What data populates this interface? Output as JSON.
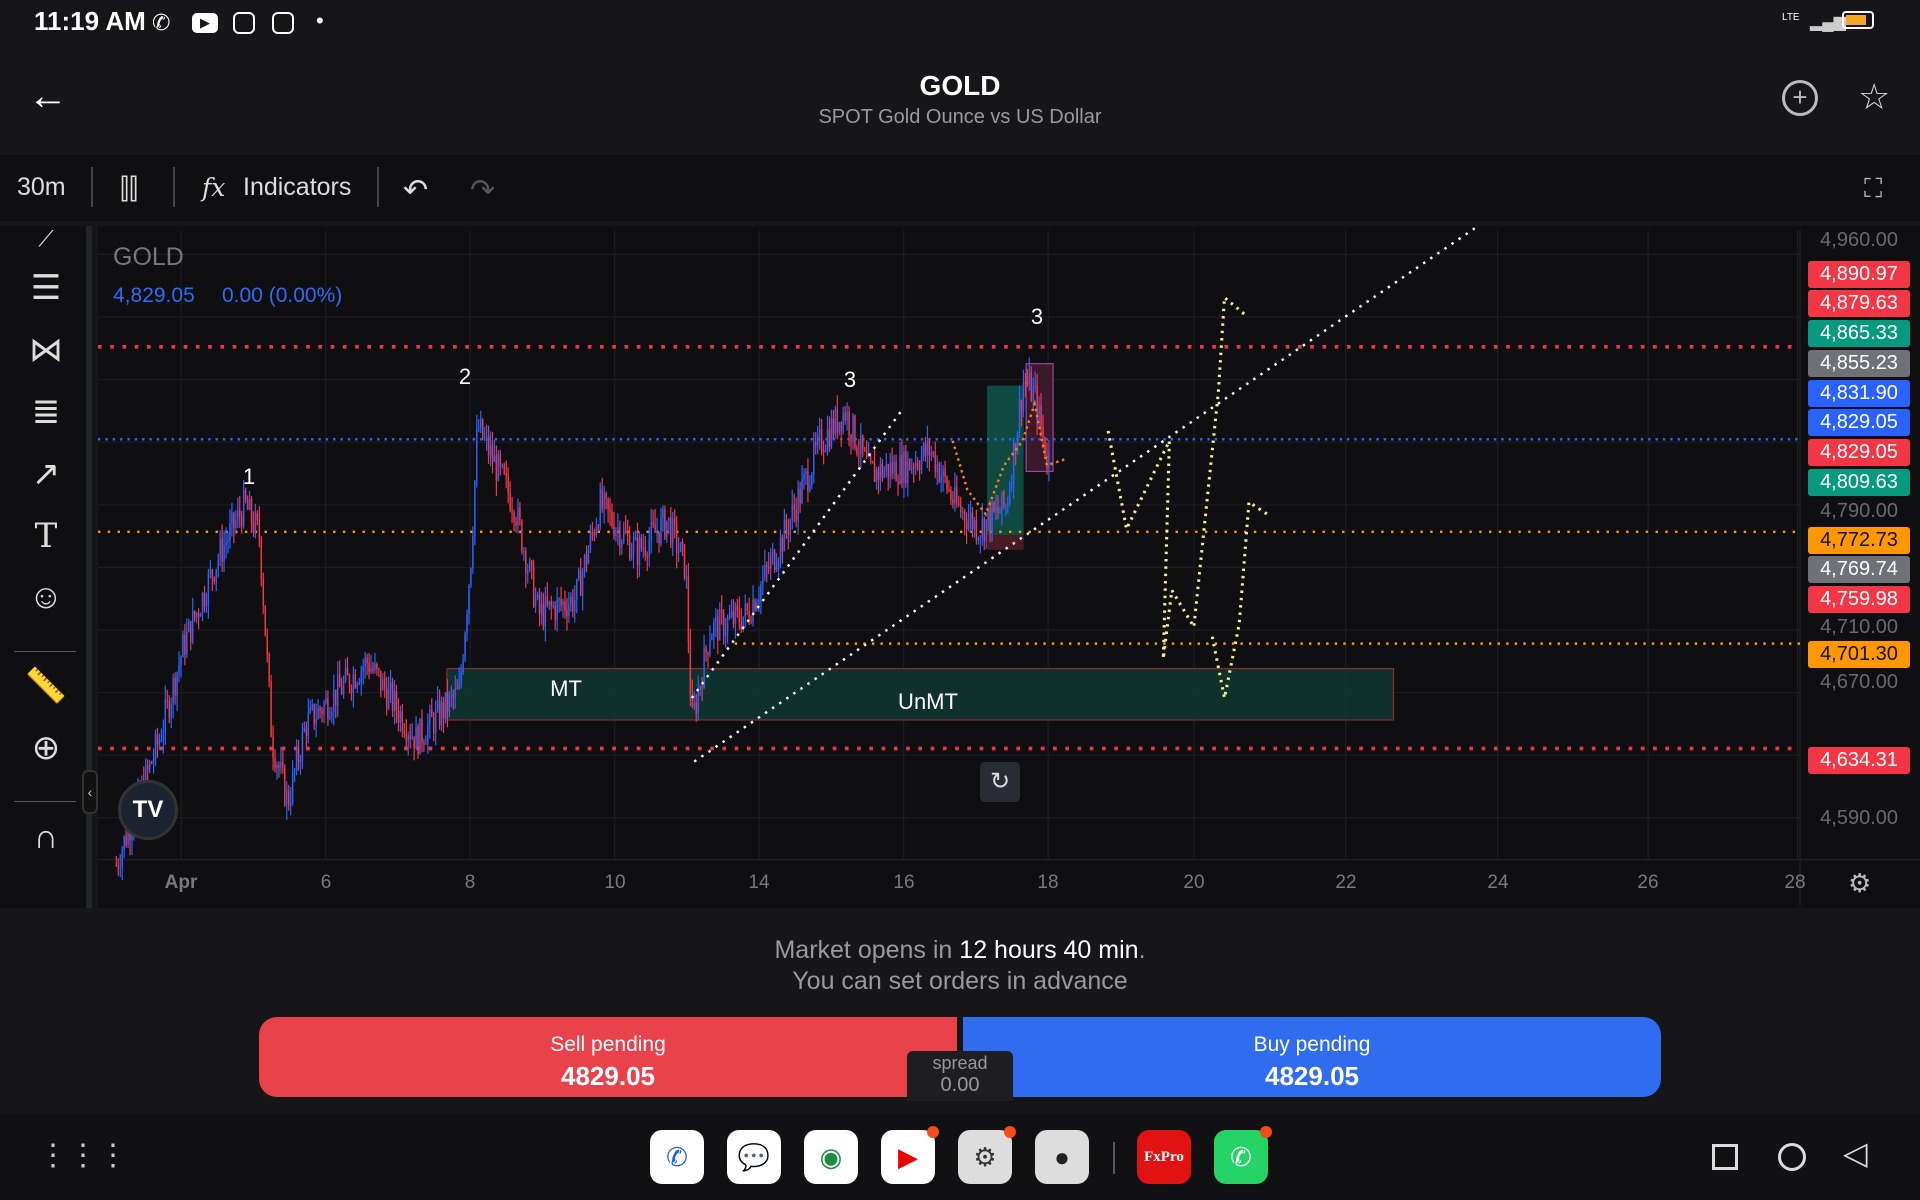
{
  "status_bar": {
    "time": "11:19 AM",
    "icons": [
      "whatsapp-icon",
      "youtube-icon",
      "instagram-icon",
      "instagram-icon",
      "dot-icon"
    ],
    "network": "LTE"
  },
  "header": {
    "title": "GOLD",
    "subtitle": "SPOT Gold Ounce vs US Dollar"
  },
  "toolbar": {
    "interval": "30m",
    "indicators_label": "Indicators"
  },
  "chart": {
    "symbol": "GOLD",
    "last_price": "4,829.05",
    "change": "0.00 (0.00%)",
    "price_ticks": [
      "4,960.00",
      "4,790.00",
      "4,710.00",
      "4,670.00",
      "4,590.00"
    ],
    "price_labels": [
      {
        "text": "4,890.97",
        "color": "#f23645"
      },
      {
        "text": "4,879.63",
        "color": "#f23645"
      },
      {
        "text": "4,865.33",
        "color": "#089981"
      },
      {
        "text": "4,855.23",
        "color": "#707078"
      },
      {
        "text": "4,831.90",
        "color": "#2962ff"
      },
      {
        "text": "4,829.05",
        "color": "#2962ff"
      },
      {
        "text": "4,829.05",
        "color": "#f23645"
      },
      {
        "text": "4,809.63",
        "color": "#089981"
      },
      {
        "text": "4,772.73",
        "color": "#ff9800"
      },
      {
        "text": "4,769.74",
        "color": "#707078"
      },
      {
        "text": "4,759.98",
        "color": "#f23645"
      },
      {
        "text": "4,701.30",
        "color": "#ff9800"
      },
      {
        "text": "4,634.31",
        "color": "#f23645"
      }
    ],
    "x_labels": [
      "Apr",
      "6",
      "8",
      "10",
      "14",
      "16",
      "18",
      "20",
      "22",
      "24",
      "26",
      "28"
    ],
    "wave_labels": [
      "1",
      "2",
      "3",
      "3"
    ],
    "zone_labels": [
      "MT",
      "UnMT"
    ],
    "colors": {
      "up": "#2962ff",
      "down": "#f23645",
      "resistance": "#f23645",
      "support": "#ff9800",
      "drawing": "#f5f08a"
    }
  },
  "market": {
    "prefix": "Market opens in ",
    "time": "12 hours 40 min",
    "suffix": ".",
    "note": "You can set orders in advance"
  },
  "trade": {
    "sell_label": "Sell pending",
    "sell_price": "4829.05",
    "buy_label": "Buy pending",
    "buy_price": "4829.05",
    "spread_label": "spread",
    "spread_value": "0.00"
  },
  "dock": {
    "fxpro": "FxPro"
  }
}
